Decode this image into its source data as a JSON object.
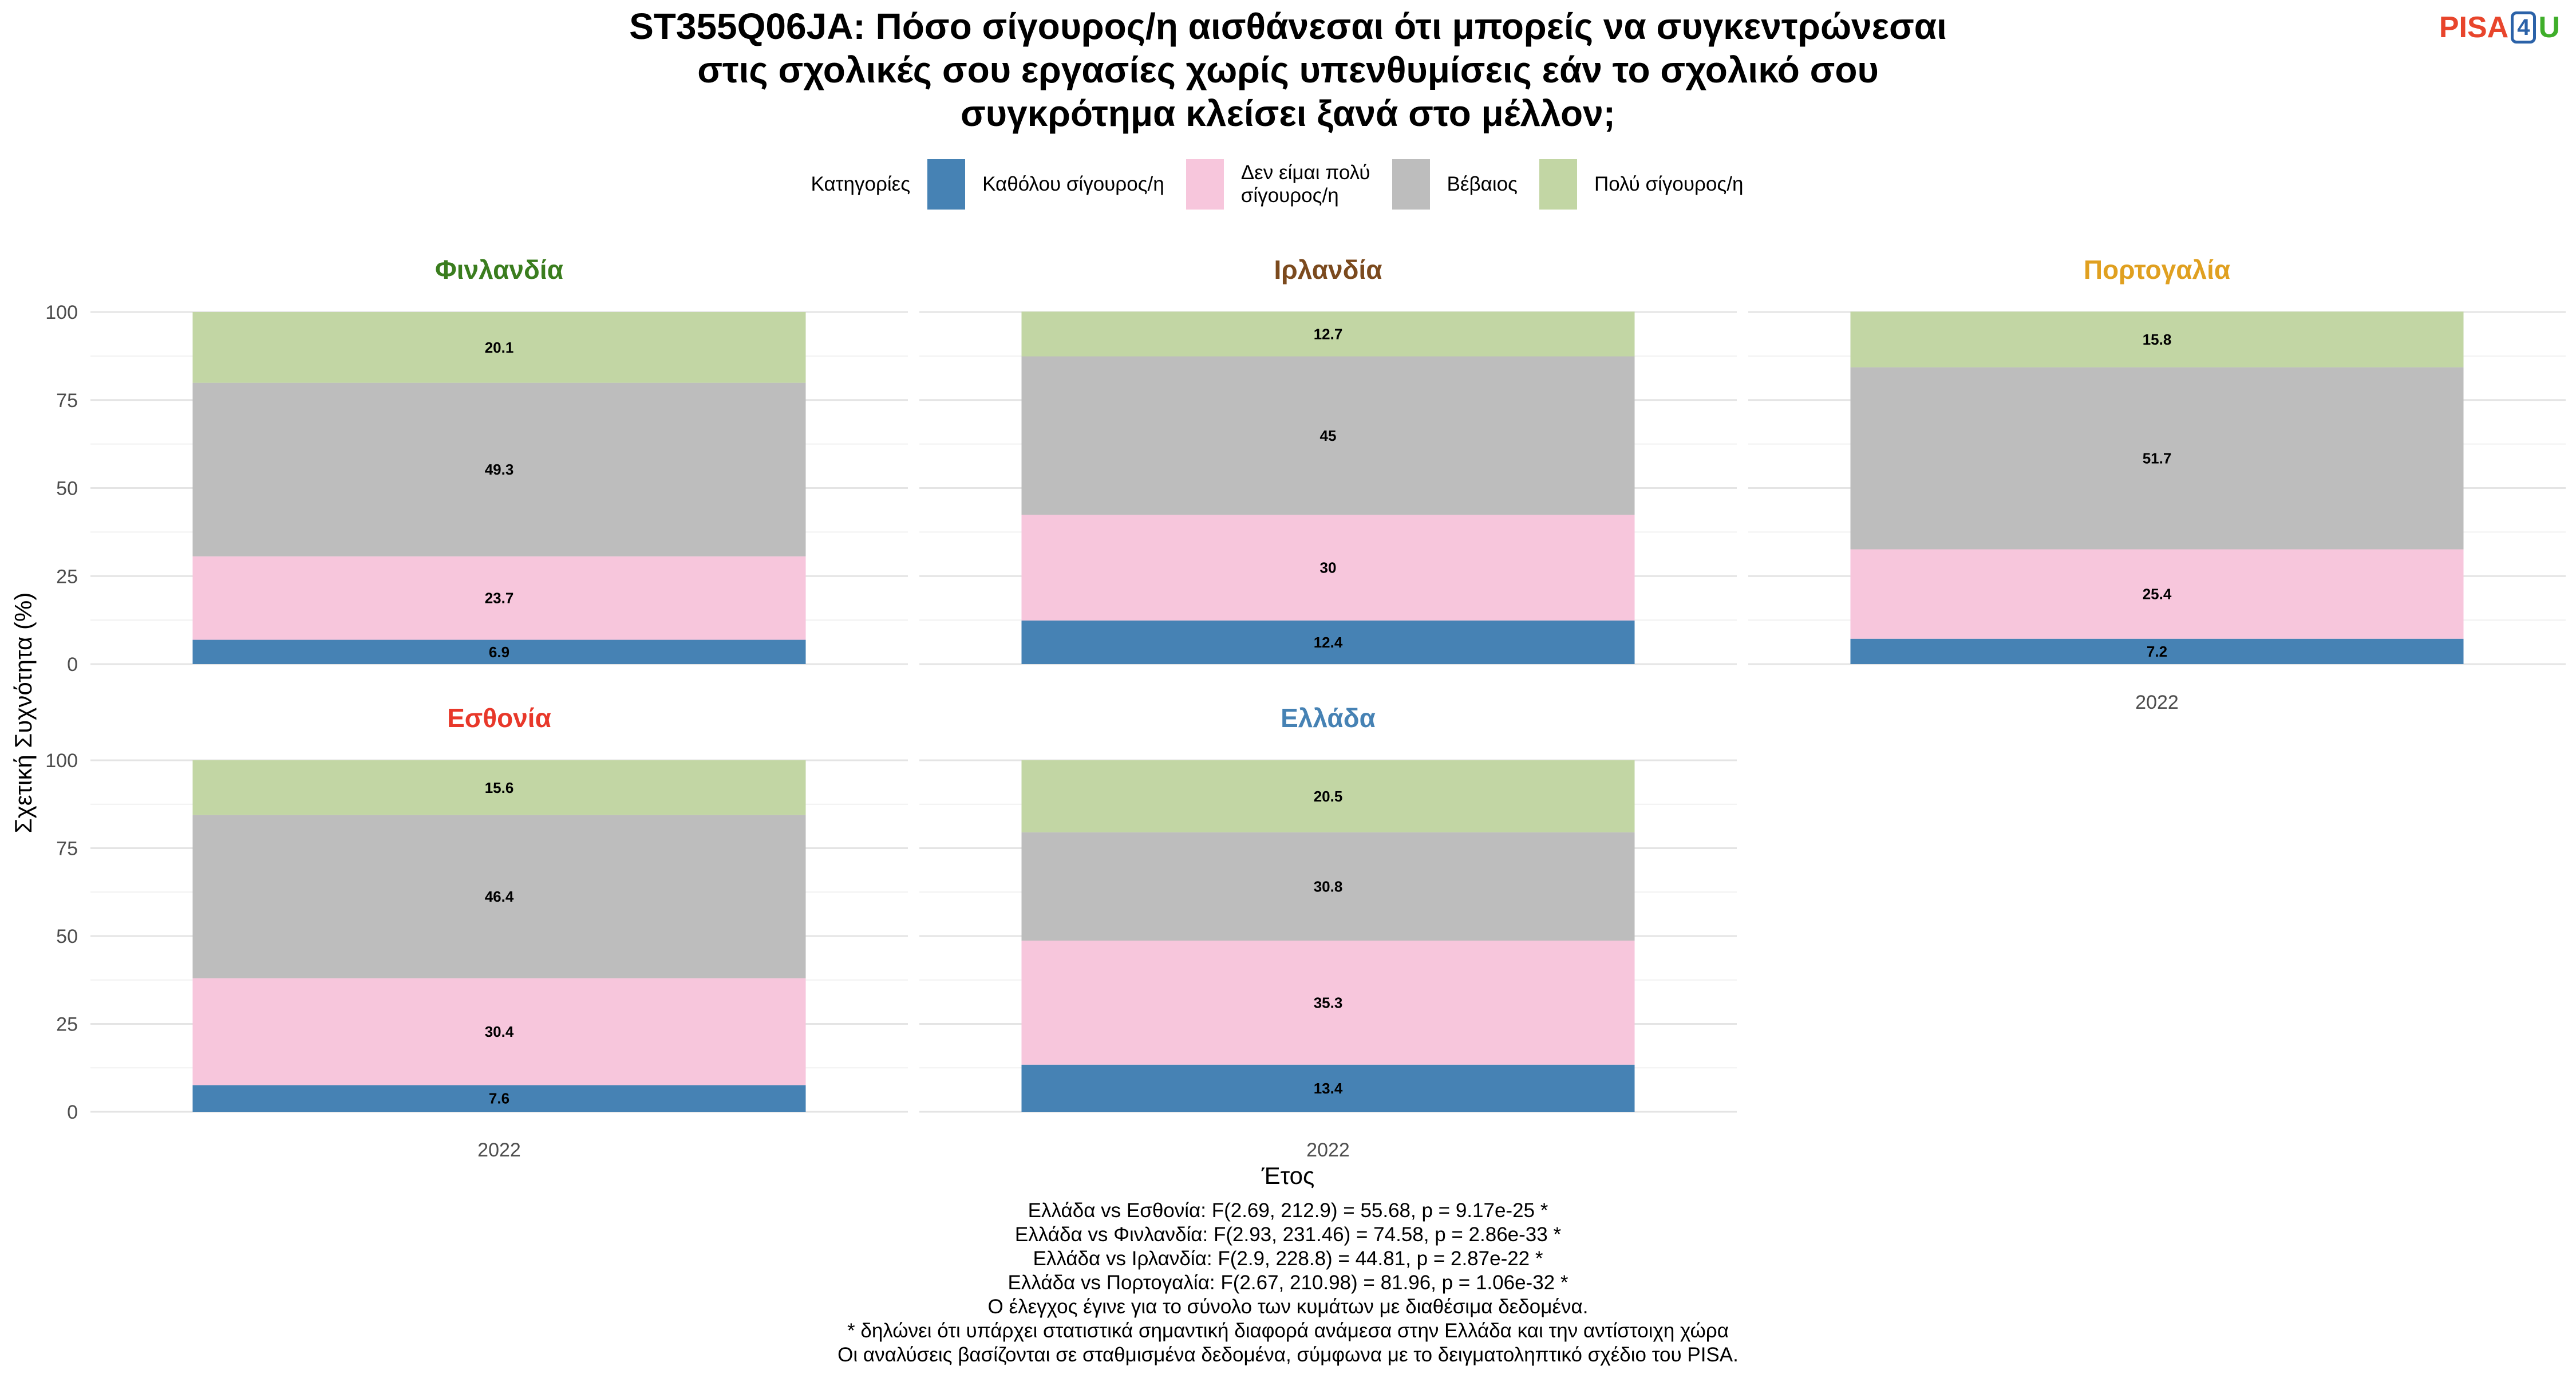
{
  "title_lines": [
    "ST355Q06JA: Πόσο σίγουρος/η αισθάνεσαι ότι μπορείς να συγκεντρώνεσαι",
    "στις σχολικές σου εργασίες χωρίς υπενθυμίσεις εάν το σχολικό σου",
    "συγκρότημα κλείσει ξανά στο μέλλον;"
  ],
  "logo": {
    "left": "PISA",
    "number": "4",
    "right": "U"
  },
  "legend_title": "Κατηγορίες",
  "legend": [
    {
      "label": "Καθόλου σίγουρος/η",
      "color": "#4682b4"
    },
    {
      "label": "Δεν είμαι πολύ\nσίγουρος/η",
      "color": "#f7c6dc"
    },
    {
      "label": "Βέβαιος",
      "color": "#bdbdbd"
    },
    {
      "label": "Πολύ σίγουρος/η",
      "color": "#c2d6a4"
    }
  ],
  "footnotes": [
    "Ελλάδα vs Εσθονία: F(2.69, 212.9) = 55.68, p = 9.17e-25 *",
    "Ελλάδα vs Φινλανδία: F(2.93, 231.46) = 74.58, p = 2.86e-33 *",
    "Ελλάδα vs Ιρλανδία: F(2.9, 228.8) = 44.81, p = 2.87e-22 *",
    "Ελλάδα vs Πορτογαλία: F(2.67, 210.98) = 81.96, p = 1.06e-32 *",
    "Ο έλεγχος έγινε για το σύνολο των κυμάτων με διαθέσιμα δεδομένα.",
    "* δηλώνει ότι υπάρχει στατιστικά σημαντική διαφορά ανάμεσα στην Ελλάδα και την αντίστοιχη χώρα",
    "Οι αναλύσεις βασίζονται σε σταθμισμένα δεδομένα, σύμφωνα με το δειγματοληπτικό σχέδιο του PISA."
  ],
  "chart_data": {
    "type": "bar",
    "stacked": true,
    "xlabel": "Έτος",
    "ylabel": "Σχετική Συχνότητα (%)",
    "ylim": [
      0,
      100
    ],
    "yticks": [
      0,
      25,
      50,
      75,
      100
    ],
    "grid": true,
    "legend_position": "top",
    "categories": [
      "Καθόλου σίγουρος/η",
      "Δεν είμαι πολύ σίγουρος/η",
      "Βέβαιος",
      "Πολύ σίγουρος/η"
    ],
    "colors": [
      "#4682b4",
      "#f7c6dc",
      "#bdbdbd",
      "#c2d6a4"
    ],
    "panels": [
      {
        "country": "Φινλανδία",
        "title_color": "#3a7d1e",
        "year": "2022",
        "values": [
          6.9,
          23.7,
          49.3,
          20.1
        ]
      },
      {
        "country": "Ιρλανδία",
        "title_color": "#7b4a1e",
        "year": "2022",
        "values": [
          12.4,
          30,
          45,
          12.7
        ]
      },
      {
        "country": "Πορτογαλία",
        "title_color": "#e0a020",
        "year": "2022",
        "values": [
          7.2,
          25.4,
          51.7,
          15.8
        ]
      },
      {
        "country": "Εσθονία",
        "title_color": "#e8382a",
        "year": "2022",
        "values": [
          7.6,
          30.4,
          46.4,
          15.6
        ]
      },
      {
        "country": "Ελλάδα",
        "title_color": "#4682b4",
        "year": "2022",
        "values": [
          13.4,
          35.3,
          30.8,
          20.5
        ]
      }
    ]
  }
}
